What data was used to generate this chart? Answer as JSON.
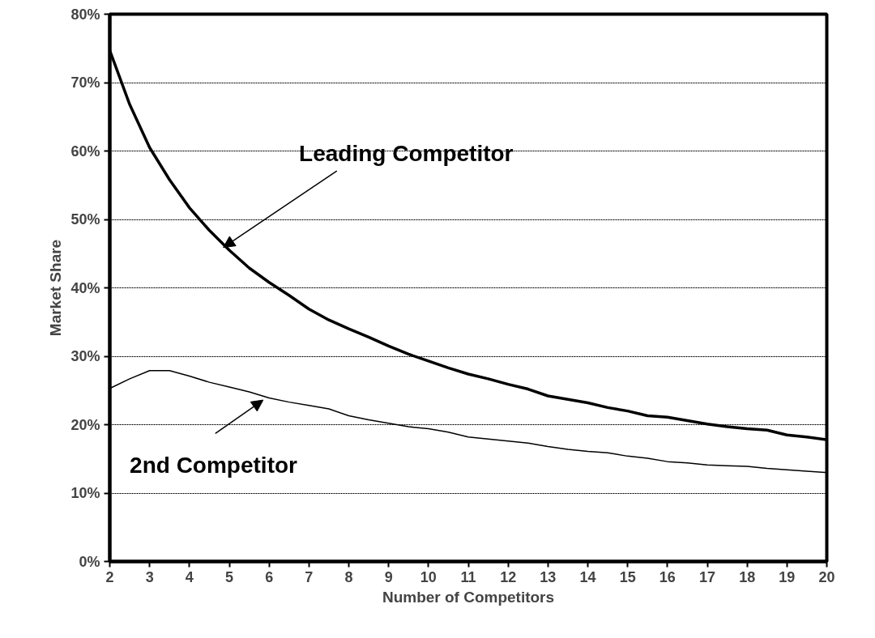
{
  "chart_data": {
    "type": "line",
    "xlabel": "Number of Competitors",
    "ylabel": "Market Share",
    "x": [
      2,
      2.5,
      3,
      3.5,
      4,
      4.5,
      5,
      5.5,
      6,
      6.5,
      7,
      7.5,
      8,
      8.5,
      9,
      9.5,
      10,
      10.5,
      11,
      11.5,
      12,
      12.5,
      13,
      13.5,
      14,
      14.5,
      15,
      15.5,
      16,
      16.5,
      17,
      17.5,
      18,
      18.5,
      19,
      19.5,
      20
    ],
    "series": [
      {
        "color": "#000000",
        "values": [
          74.7,
          66.8,
          60.5,
          55.8,
          51.7,
          48.4,
          45.5,
          42.9,
          40.8,
          38.9,
          36.9,
          35.3,
          34.0,
          32.8,
          31.5,
          30.3,
          29.3,
          28.3,
          27.4,
          26.7,
          25.9,
          25.2,
          24.2,
          23.7,
          23.2,
          22.5,
          22.0,
          21.3,
          21.1,
          20.6,
          20.1,
          19.7,
          19.4,
          19.2,
          18.5,
          18.2,
          17.8
        ]
      },
      {
        "color": "#000000",
        "values": [
          25.3,
          26.7,
          27.9,
          27.9,
          27.1,
          26.2,
          25.5,
          24.8,
          23.9,
          23.3,
          22.8,
          22.3,
          21.3,
          20.7,
          20.2,
          19.7,
          19.4,
          18.9,
          18.2,
          17.9,
          17.6,
          17.3,
          16.8,
          16.4,
          16.1,
          15.9,
          15.4,
          15.1,
          14.6,
          14.4,
          14.1,
          14.0,
          13.9,
          13.6,
          13.4,
          13.2,
          13.0
        ]
      }
    ],
    "xlim": [
      2,
      20
    ],
    "ylim": [
      0,
      80
    ],
    "xticks": [
      2,
      3,
      4,
      5,
      6,
      7,
      8,
      9,
      10,
      11,
      12,
      13,
      14,
      15,
      16,
      17,
      18,
      19,
      20
    ],
    "yticks": [
      {
        "value": 0,
        "label": "0%"
      },
      {
        "value": 10,
        "label": "10%"
      },
      {
        "value": 20,
        "label": "20%"
      },
      {
        "value": 30,
        "label": "30%"
      },
      {
        "value": 40,
        "label": "40%"
      },
      {
        "value": 50,
        "label": "50%"
      },
      {
        "value": 60,
        "label": "60%"
      },
      {
        "value": 70,
        "label": "70%"
      },
      {
        "value": 80,
        "label": "80%"
      }
    ],
    "grid": "y",
    "marker": "none",
    "line_style": "solid",
    "annotations": [
      {
        "text": "Leading Competitor",
        "x": 4.85,
        "y": 45.9
      },
      {
        "text": "2nd Competitor",
        "x": 5.85,
        "y": 23.6
      }
    ]
  }
}
